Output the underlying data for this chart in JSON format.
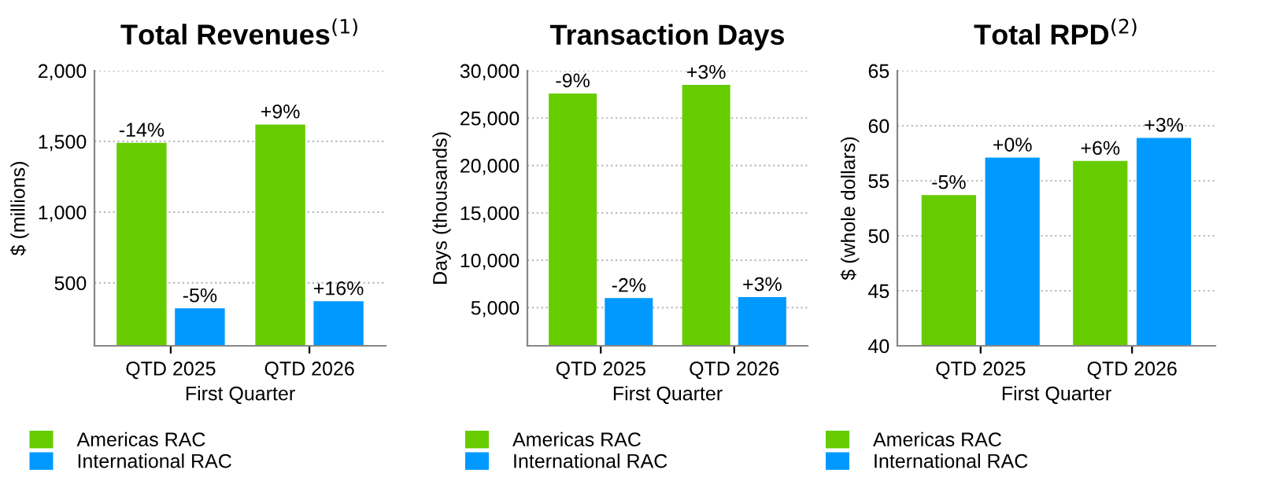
{
  "chart_data": [
    {
      "type": "bar",
      "title": "Total Revenues$^{(1)}$",
      "xlabel": "First Quarter",
      "ylabel": "$ (millions)",
      "categories": [
        "QTD 2025",
        "QTD 2026"
      ],
      "ylim": [
        55,
        2000
      ],
      "yticks": [
        500,
        {
          "value": 1000,
          "label": "1,000"
        },
        {
          "value": 1500,
          "label": "1,500"
        },
        {
          "value": 2000,
          "label": "2,000"
        }
      ],
      "grid": "y",
      "legend": "bottom",
      "series": [
        {
          "name": "Americas RAC",
          "color": "#66cc00",
          "values": [
            1490,
            1620
          ]
        },
        {
          "name": "International RAC",
          "color": "#0099ff",
          "values": [
            320,
            370
          ]
        }
      ],
      "annotations": [
        {
          "text": "-14%",
          "x": "QTD 2025",
          "y": 1490
        },
        {
          "text": "+9%",
          "x": "QTD 2026",
          "y": 1620
        },
        {
          "text": "-5%",
          "x": "QTD 2025",
          "y": 320
        },
        {
          "text": "+16%",
          "x": "QTD 2026",
          "y": 370
        }
      ]
    },
    {
      "type": "bar",
      "title": "Transaction Days",
      "xlabel": "First Quarter",
      "ylabel": "Days (thousands)",
      "categories": [
        "QTD 2025",
        "QTD 2026"
      ],
      "ylim": [
        960,
        30000
      ],
      "yticks": [
        {
          "value": 5000,
          "label": "5,000"
        },
        {
          "value": 10000,
          "label": "10,000"
        },
        {
          "value": 15000,
          "label": "15,000"
        },
        {
          "value": 20000,
          "label": "20,000"
        },
        {
          "value": 25000,
          "label": "25,000"
        },
        {
          "value": 30000,
          "label": "30,000"
        }
      ],
      "grid": "y",
      "legend": "bottom",
      "series": [
        {
          "name": "Americas RAC",
          "color": "#66cc00",
          "values": [
            27600,
            28500
          ]
        },
        {
          "name": "International RAC",
          "color": "#0099ff",
          "values": [
            6000,
            6100
          ]
        }
      ],
      "annotations": [
        {
          "text": "-9%",
          "x": "QTD 2025",
          "y": 27600
        },
        {
          "text": "+3%",
          "x": "QTD 2026",
          "y": 28500
        },
        {
          "text": "-2%",
          "x": "QTD 2025",
          "y": 6000
        },
        {
          "text": "+3%",
          "x": "QTD 2026",
          "y": 6100
        }
      ]
    },
    {
      "type": "bar",
      "title": "Total RPD$^{(2)}$",
      "xlabel": "First Quarter",
      "ylabel": "$ (whole dollars)",
      "categories": [
        "QTD 2025",
        "QTD 2026"
      ],
      "ylim": [
        40,
        65
      ],
      "yticks": [
        40,
        45,
        50,
        55,
        60,
        65
      ],
      "grid": "y",
      "legend": "bottom",
      "series": [
        {
          "name": "Americas RAC",
          "color": "#66cc00",
          "values": [
            53.7,
            56.8
          ]
        },
        {
          "name": "International RAC",
          "color": "#0099ff",
          "values": [
            57.1,
            58.9
          ]
        }
      ],
      "annotations": [
        {
          "text": "-5%",
          "x": "QTD 2025",
          "y": 53.7
        },
        {
          "text": "+6%",
          "x": "QTD 2026",
          "y": 56.8
        },
        {
          "text": "+0%",
          "x": "QTD 2025",
          "y": 57.1
        },
        {
          "text": "+3%",
          "x": "QTD 2026",
          "y": 58.9
        }
      ]
    }
  ]
}
